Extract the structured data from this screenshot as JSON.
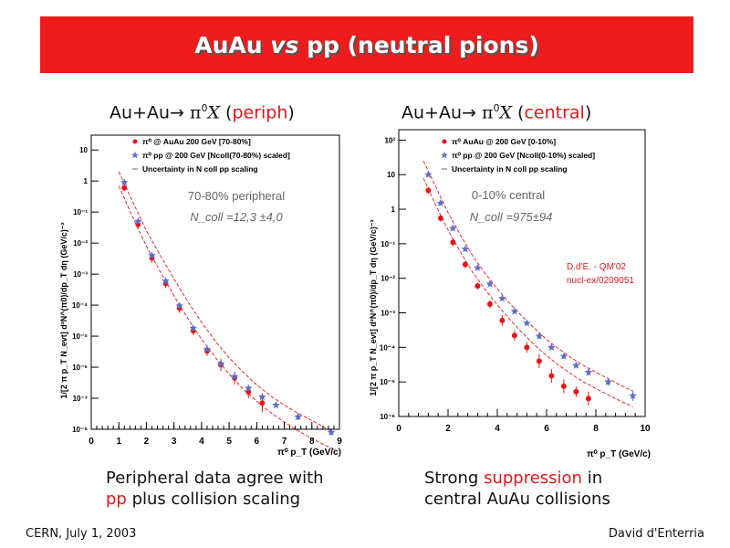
{
  "banner": {
    "title_a": "AuAu ",
    "title_vs": "vs",
    "title_b": " pp (neutral pions)"
  },
  "panels": [
    {
      "heading_left": "Au+Au→ ",
      "heading_pi": "π",
      "heading_sup": "0",
      "heading_x": "X",
      "heading_paren_open": " (",
      "heading_tag": "periph",
      "heading_paren_close": ")"
    },
    {
      "heading_left": "Au+Au→ ",
      "heading_pi": "π",
      "heading_sup": "0",
      "heading_x": "X",
      "heading_paren_open": " (",
      "heading_tag": "central",
      "heading_paren_close": ")"
    }
  ],
  "captions": {
    "left_line1": "Peripheral data agree with",
    "left_line2_red": "pp",
    "left_line2_rest": " plus collision scaling",
    "right_line1_a": "Strong ",
    "right_line1_red": "suppression",
    "right_line1_b": " in",
    "right_line2": "central AuAu collisions"
  },
  "footer": {
    "left": "CERN, July 1, 2003",
    "right": "David d'Enterria"
  },
  "colors": {
    "banner": "#ee1c1c",
    "red": "#e4161b",
    "blue": "#5a6fc8",
    "band": "#e4161b"
  },
  "chart_data": [
    {
      "type": "scatter",
      "log_y": true,
      "xlim": [
        0,
        9
      ],
      "ylim": [
        1e-08,
        30
      ],
      "x_ticks": [
        0,
        1,
        2,
        3,
        4,
        5,
        6,
        7,
        8,
        9
      ],
      "y_ticks": [
        "10",
        "1",
        "10⁻¹",
        "10⁻²",
        "10⁻³",
        "10⁻⁴",
        "10⁻⁵",
        "10⁻⁶",
        "10⁻⁷",
        "10⁻⁸"
      ],
      "ylabel": "1/[2 π p_T N_evt] d²N^(π0)/dp_T dη (GeV/c)⁻²",
      "xlabel": "π⁰ p_T (GeV/c)",
      "legend": [
        "π⁰ @ AuAu 200 GeV [70-80%]",
        "π⁰ pp @ 200 GeV [Ncoll(70-80%) scaled]",
        "Uncertainty in N coll pp scaling"
      ],
      "annotations": [
        "70-80% peripheral",
        "N_coll =12,3 ±4,0"
      ],
      "series": [
        {
          "name": "π⁰ @ AuAu 200 GeV [70-80%]",
          "marker": "circle",
          "x": [
            1.2,
            1.7,
            2.2,
            2.7,
            3.2,
            3.7,
            4.2,
            4.7,
            5.2,
            5.7,
            6.2
          ],
          "y": [
            0.6,
            0.04,
            0.0033,
            0.0005,
            8e-05,
            1.5e-05,
            3.3e-06,
            1.2e-06,
            4.5e-07,
            1.6e-07,
            7e-08
          ],
          "err": [
            0.1,
            0.15,
            0.15,
            0.15,
            0.15,
            0.15,
            0.15,
            0.2,
            0.2,
            0.2,
            0.3
          ]
        },
        {
          "name": "π⁰ pp @ 200 GeV [Ncoll(70-80%) scaled]",
          "marker": "star",
          "x": [
            1.2,
            1.7,
            2.2,
            2.7,
            3.2,
            3.7,
            4.2,
            4.7,
            5.2,
            5.7,
            6.2,
            6.7,
            7.5,
            8.7
          ],
          "y": [
            0.9,
            0.05,
            0.004,
            0.0006,
            9.5e-05,
            1.8e-05,
            3.8e-06,
            1.3e-06,
            5e-07,
            2.1e-07,
            1.1e-07,
            6e-08,
            2.5e-08,
            8e-09
          ],
          "err": [
            0,
            0,
            0,
            0,
            0,
            0,
            0,
            0,
            0,
            0,
            0,
            0,
            0.1,
            0.1
          ]
        }
      ],
      "band": {
        "x": [
          1.0,
          1.5,
          2.0,
          2.5,
          3.0,
          3.5,
          4.0,
          4.5,
          5.0,
          5.5,
          6.0,
          6.5,
          7.0,
          7.5,
          8.0,
          8.5,
          8.8
        ],
        "upper": [
          2.0,
          0.22,
          0.025,
          0.004,
          0.0007,
          0.00013,
          2.8e-05,
          7e-06,
          2e-06,
          7e-07,
          2.7e-07,
          1.2e-07,
          6e-08,
          3.3e-08,
          1.9e-08,
          1.1e-08,
          8e-09
        ],
        "lower": [
          0.7,
          0.07,
          0.008,
          0.0012,
          0.0002,
          3.8e-05,
          8e-06,
          2.1e-06,
          6e-07,
          2e-07,
          8e-08,
          3.5e-08,
          1.7e-08,
          9e-09,
          5e-09,
          3e-09,
          2.3e-09
        ]
      }
    },
    {
      "type": "scatter",
      "log_y": true,
      "xlim": [
        0,
        10
      ],
      "ylim": [
        1e-06,
        200
      ],
      "x_ticks": [
        0,
        2,
        4,
        6,
        8,
        10
      ],
      "y_ticks": [
        "10²",
        "10",
        "1",
        "10⁻¹",
        "10⁻²",
        "10⁻³",
        "10⁻⁴",
        "10⁻⁵",
        "10⁻⁶"
      ],
      "ylabel": "1/[2 π p_T N_evt] d²N^(π0)/dp_T dη (GeV/c)⁻²",
      "xlabel": "π⁰ p_T (GeV/c)",
      "legend": [
        "π⁰ AuAu @ 200 GeV [0-10%]",
        "π⁰ pp @ 200 GeV [Ncoll(0-10%) scaled]",
        "Uncertainty in N coll pp scaling"
      ],
      "annotations": [
        "0-10% central",
        "N_coll =975±94",
        "D.d'E. - QM'02",
        "nucl-ex/0209051"
      ],
      "series": [
        {
          "name": "π⁰ AuAu @ 200 GeV [0-10%]",
          "marker": "circle",
          "x": [
            1.2,
            1.7,
            2.2,
            2.7,
            3.2,
            3.7,
            4.2,
            4.7,
            5.2,
            5.7,
            6.2,
            6.7,
            7.2,
            7.7
          ],
          "y": [
            3.5,
            0.55,
            0.11,
            0.025,
            0.006,
            0.0018,
            0.0006,
            0.00022,
            0.0001,
            4e-05,
            1.5e-05,
            7.5e-06,
            5.2e-06,
            3.3e-06
          ],
          "err": [
            0.1,
            0.1,
            0.1,
            0.1,
            0.1,
            0.12,
            0.15,
            0.15,
            0.15,
            0.2,
            0.2,
            0.2,
            0.15,
            0.2
          ]
        },
        {
          "name": "π⁰ pp @ 200 GeV [Ncoll(0-10%) scaled]",
          "marker": "star",
          "x": [
            1.2,
            1.7,
            2.2,
            2.7,
            3.2,
            3.7,
            4.2,
            4.7,
            5.2,
            5.7,
            6.2,
            6.7,
            7.2,
            7.7,
            8.5,
            9.5
          ],
          "y": [
            10,
            1.5,
            0.28,
            0.07,
            0.02,
            0.0068,
            0.0026,
            0.0011,
            0.0005,
            0.00021,
            0.0001,
            5.5e-05,
            3e-05,
            1.9e-05,
            1e-05,
            4e-06
          ],
          "err": [
            0,
            0,
            0,
            0,
            0,
            0,
            0,
            0,
            0,
            0,
            0,
            0,
            0,
            0.1,
            0.1,
            0.15
          ]
        }
      ],
      "band": {
        "x": [
          1.0,
          1.5,
          2.0,
          2.5,
          3.0,
          3.5,
          4.0,
          4.5,
          5.0,
          5.5,
          6.0,
          6.5,
          7.0,
          7.5,
          8.0,
          8.5,
          9.0,
          9.5
        ],
        "upper": [
          25,
          4.5,
          0.8,
          0.18,
          0.045,
          0.014,
          0.005,
          0.0019,
          0.0008,
          0.00036,
          0.00017,
          9e-05,
          5e-05,
          3e-05,
          1.9e-05,
          1.25e-05,
          8e-06,
          5.5e-06
        ],
        "lower": [
          8,
          1.3,
          0.25,
          0.058,
          0.015,
          0.0048,
          0.0017,
          0.00065,
          0.00027,
          0.00012,
          5.8e-05,
          3e-05,
          1.7e-05,
          1e-05,
          6.5e-06,
          4.2e-06,
          2.8e-06,
          1.9e-06
        ]
      }
    }
  ]
}
